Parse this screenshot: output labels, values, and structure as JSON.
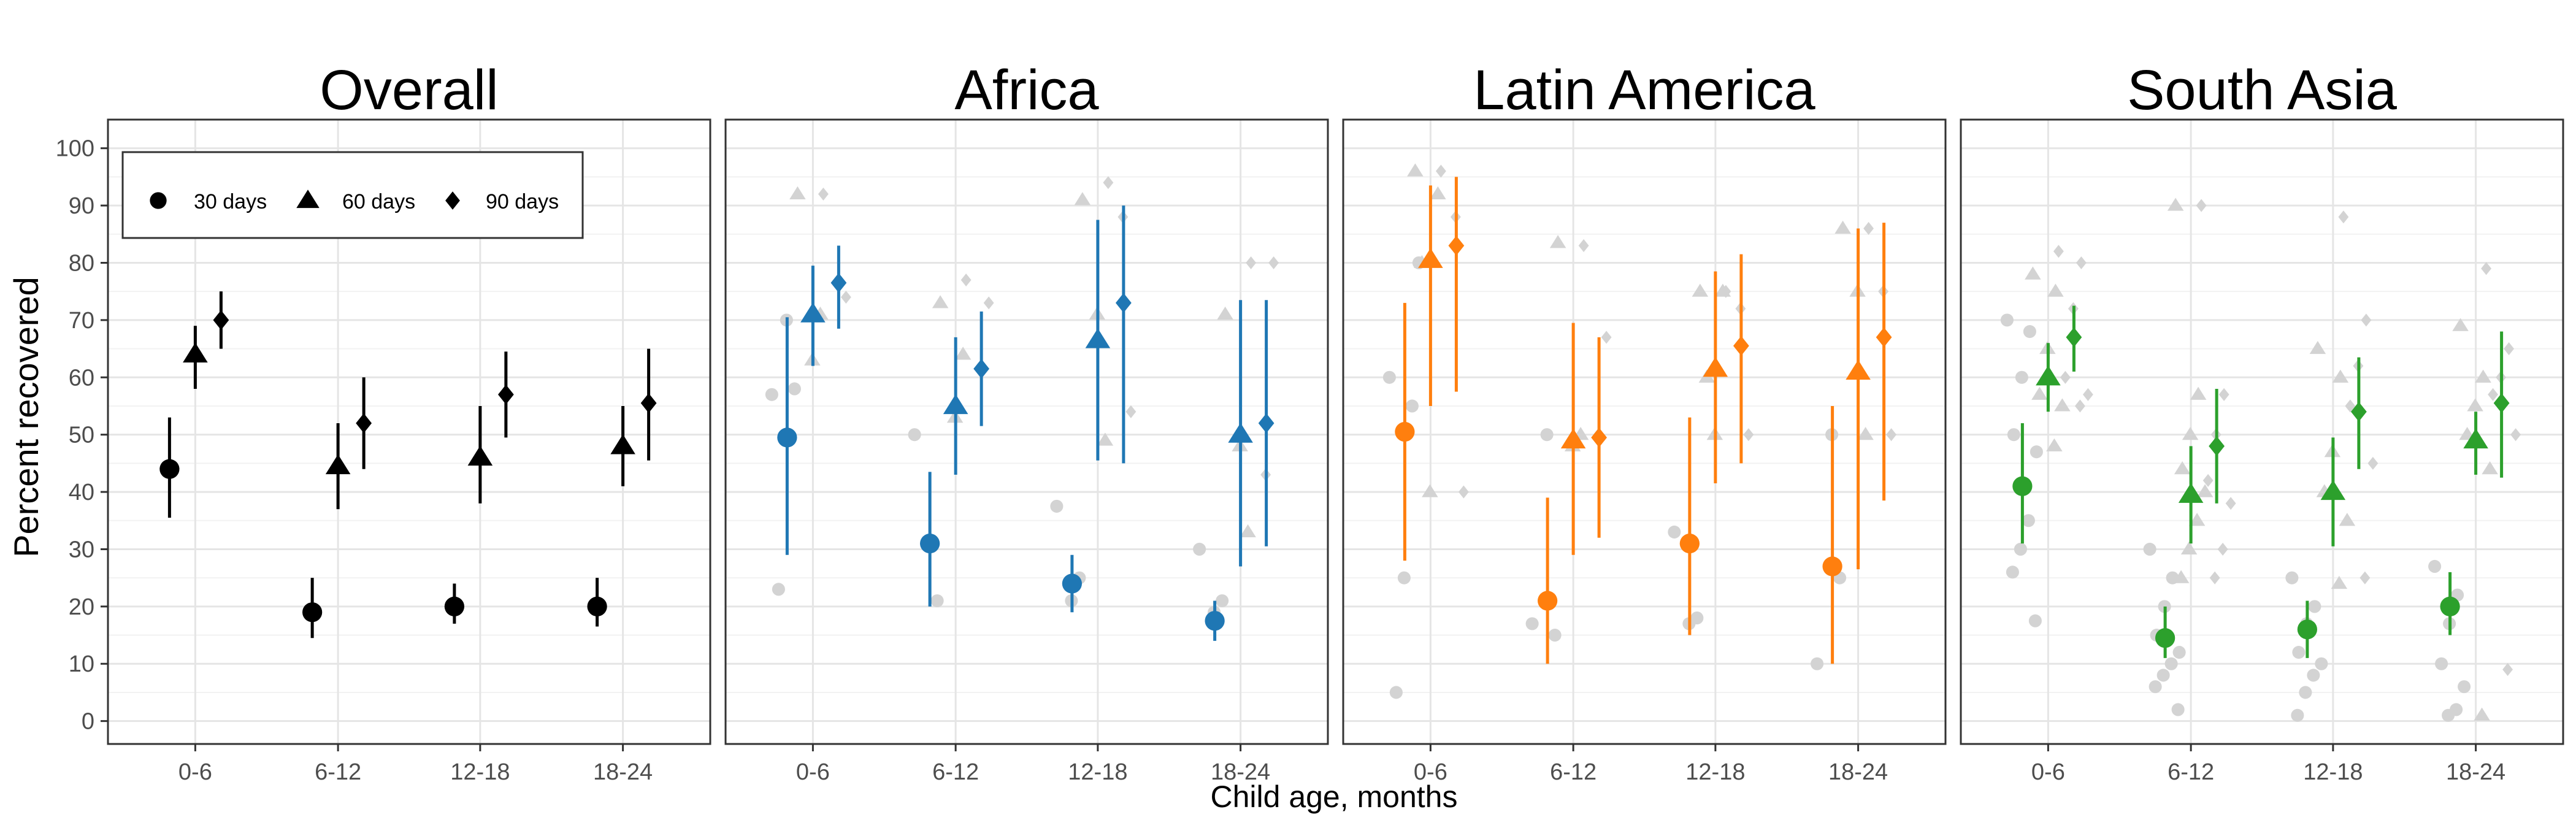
{
  "chart_data": {
    "type": "scatter",
    "ylabel": "Percent recovered",
    "xlabel": "Child age, months",
    "categories": [
      "0-6",
      "6-12",
      "12-18",
      "18-24"
    ],
    "yticks": [
      0,
      10,
      20,
      30,
      40,
      50,
      60,
      70,
      80,
      90,
      100
    ],
    "ylim": [
      -4,
      105
    ],
    "grid": true,
    "legend_position": "top-left (inside first panel)",
    "legend": [
      {
        "label": "30 days",
        "shape": "circle"
      },
      {
        "label": "60 days",
        "shape": "triangle"
      },
      {
        "label": "90 days",
        "shape": "diamond"
      }
    ],
    "colors": {
      "Overall": "#000000",
      "Africa": "#1f77b4",
      "Latin America": "#ff7f0e",
      "South Asia": "#2ca02c",
      "background_points": "#d3d3d3"
    },
    "panels": [
      {
        "title": "Overall",
        "series": [
          {
            "name": "30 days",
            "points": [
              {
                "category": "0-6",
                "y": 44,
                "lo": 35.5,
                "hi": 53
              },
              {
                "category": "6-12",
                "y": 19,
                "lo": 14.5,
                "hi": 25
              },
              {
                "category": "12-18",
                "y": 20,
                "lo": 17,
                "hi": 24
              },
              {
                "category": "18-24",
                "y": 20,
                "lo": 16.5,
                "hi": 25
              }
            ]
          },
          {
            "name": "60 days",
            "points": [
              {
                "category": "0-6",
                "y": 64,
                "lo": 58,
                "hi": 69
              },
              {
                "category": "6-12",
                "y": 44.5,
                "lo": 37,
                "hi": 52
              },
              {
                "category": "12-18",
                "y": 46,
                "lo": 38,
                "hi": 55
              },
              {
                "category": "18-24",
                "y": 48,
                "lo": 41,
                "hi": 55
              }
            ]
          },
          {
            "name": "90 days",
            "points": [
              {
                "category": "0-6",
                "y": 70,
                "lo": 65,
                "hi": 75
              },
              {
                "category": "6-12",
                "y": 52,
                "lo": 44,
                "hi": 60
              },
              {
                "category": "12-18",
                "y": 57,
                "lo": 49.5,
                "hi": 64.5
              },
              {
                "category": "18-24",
                "y": 55.5,
                "lo": 45.5,
                "hi": 65
              }
            ]
          }
        ],
        "background": []
      },
      {
        "title": "Africa",
        "series": [
          {
            "name": "30 days",
            "points": [
              {
                "category": "0-6",
                "y": 49.5,
                "lo": 29,
                "hi": 70.5
              },
              {
                "category": "6-12",
                "y": 31,
                "lo": 20,
                "hi": 43.5
              },
              {
                "category": "12-18",
                "y": 24,
                "lo": 19,
                "hi": 29
              },
              {
                "category": "18-24",
                "y": 17.5,
                "lo": 14,
                "hi": 21
              }
            ]
          },
          {
            "name": "60 days",
            "points": [
              {
                "category": "0-6",
                "y": 71,
                "lo": 62,
                "hi": 79.5
              },
              {
                "category": "6-12",
                "y": 55,
                "lo": 43,
                "hi": 67
              },
              {
                "category": "12-18",
                "y": 66.5,
                "lo": 45.5,
                "hi": 87.5
              },
              {
                "category": "18-24",
                "y": 50,
                "lo": 27,
                "hi": 73.5
              }
            ]
          },
          {
            "name": "90 days",
            "points": [
              {
                "category": "0-6",
                "y": 76.5,
                "lo": 68.5,
                "hi": 83
              },
              {
                "category": "6-12",
                "y": 61.5,
                "lo": 51.5,
                "hi": 71.5
              },
              {
                "category": "12-18",
                "y": 73,
                "lo": 45,
                "hi": 90
              },
              {
                "category": "18-24",
                "y": 52,
                "lo": 30.5,
                "hi": 73.5
              }
            ]
          }
        ],
        "background": [
          {
            "category": "0-6",
            "series": "30 days",
            "ys": [
              57,
              58,
              70,
              23
            ]
          },
          {
            "category": "0-6",
            "series": "60 days",
            "ys": [
              92,
              71,
              63
            ]
          },
          {
            "category": "0-6",
            "series": "90 days",
            "ys": [
              92,
              74
            ]
          },
          {
            "category": "6-12",
            "series": "30 days",
            "ys": [
              50,
              21
            ]
          },
          {
            "category": "6-12",
            "series": "60 days",
            "ys": [
              73,
              64,
              53
            ]
          },
          {
            "category": "6-12",
            "series": "90 days",
            "ys": [
              77,
              73
            ]
          },
          {
            "category": "12-18",
            "series": "30 days",
            "ys": [
              37.5,
              25,
              21
            ]
          },
          {
            "category": "12-18",
            "series": "60 days",
            "ys": [
              91,
              49,
              71
            ]
          },
          {
            "category": "12-18",
            "series": "90 days",
            "ys": [
              94,
              54,
              88
            ]
          },
          {
            "category": "18-24",
            "series": "30 days",
            "ys": [
              30,
              21,
              19
            ]
          },
          {
            "category": "18-24",
            "series": "60 days",
            "ys": [
              71,
              33,
              48
            ]
          },
          {
            "category": "18-24",
            "series": "90 days",
            "ys": [
              80,
              80,
              43
            ]
          }
        ]
      },
      {
        "title": "Latin America",
        "series": [
          {
            "name": "30 days",
            "points": [
              {
                "category": "0-6",
                "y": 50.5,
                "lo": 28,
                "hi": 73
              },
              {
                "category": "6-12",
                "y": 21,
                "lo": 10,
                "hi": 39
              },
              {
                "category": "12-18",
                "y": 31,
                "lo": 15,
                "hi": 53
              },
              {
                "category": "18-24",
                "y": 27,
                "lo": 10,
                "hi": 55
              }
            ]
          },
          {
            "name": "60 days",
            "points": [
              {
                "category": "0-6",
                "y": 80.5,
                "lo": 55,
                "hi": 93.5
              },
              {
                "category": "6-12",
                "y": 49,
                "lo": 29,
                "hi": 69.5
              },
              {
                "category": "12-18",
                "y": 61.5,
                "lo": 41.5,
                "hi": 78.5
              },
              {
                "category": "18-24",
                "y": 61,
                "lo": 26.5,
                "hi": 86
              }
            ]
          },
          {
            "name": "90 days",
            "points": [
              {
                "category": "0-6",
                "y": 83,
                "lo": 57.5,
                "hi": 95
              },
              {
                "category": "6-12",
                "y": 49.5,
                "lo": 32,
                "hi": 67
              },
              {
                "category": "12-18",
                "y": 65.5,
                "lo": 45,
                "hi": 81.5
              },
              {
                "category": "18-24",
                "y": 67,
                "lo": 38.5,
                "hi": 87
              }
            ]
          }
        ],
        "background": [
          {
            "category": "0-6",
            "series": "30 days",
            "ys": [
              60,
              55,
              25,
              5,
              80
            ]
          },
          {
            "category": "0-6",
            "series": "60 days",
            "ys": [
              96,
              92,
              40,
              80
            ]
          },
          {
            "category": "0-6",
            "series": "90 days",
            "ys": [
              96,
              40,
              88
            ]
          },
          {
            "category": "6-12",
            "series": "30 days",
            "ys": [
              17,
              15,
              50
            ]
          },
          {
            "category": "6-12",
            "series": "60 days",
            "ys": [
              83.5,
              50,
              48
            ]
          },
          {
            "category": "6-12",
            "series": "90 days",
            "ys": [
              83,
              67,
              50
            ]
          },
          {
            "category": "12-18",
            "series": "30 days",
            "ys": [
              33,
              18,
              17
            ]
          },
          {
            "category": "12-18",
            "series": "60 days",
            "ys": [
              75,
              75,
              50,
              60
            ]
          },
          {
            "category": "12-18",
            "series": "90 days",
            "ys": [
              75,
              50,
              72
            ]
          },
          {
            "category": "18-24",
            "series": "30 days",
            "ys": [
              10,
              25,
              50
            ]
          },
          {
            "category": "18-24",
            "series": "60 days",
            "ys": [
              86,
              50,
              75
            ]
          },
          {
            "category": "18-24",
            "series": "90 days",
            "ys": [
              86,
              50,
              75
            ]
          }
        ]
      },
      {
        "title": "South Asia",
        "series": [
          {
            "name": "30 days",
            "points": [
              {
                "category": "0-6",
                "y": 41,
                "lo": 31,
                "hi": 52
              },
              {
                "category": "6-12",
                "y": 14.5,
                "lo": 11,
                "hi": 20
              },
              {
                "category": "12-18",
                "y": 16,
                "lo": 11,
                "hi": 21
              },
              {
                "category": "18-24",
                "y": 20,
                "lo": 15,
                "hi": 26
              }
            ]
          },
          {
            "name": "60 days",
            "points": [
              {
                "category": "0-6",
                "y": 60,
                "lo": 54,
                "hi": 66
              },
              {
                "category": "6-12",
                "y": 39.5,
                "lo": 31,
                "hi": 48
              },
              {
                "category": "12-18",
                "y": 40,
                "lo": 30.5,
                "hi": 49.5
              },
              {
                "category": "18-24",
                "y": 49,
                "lo": 43,
                "hi": 54
              }
            ]
          },
          {
            "name": "90 days",
            "points": [
              {
                "category": "0-6",
                "y": 67,
                "lo": 61,
                "hi": 72.5
              },
              {
                "category": "6-12",
                "y": 48,
                "lo": 38,
                "hi": 58
              },
              {
                "category": "12-18",
                "y": 54,
                "lo": 44,
                "hi": 63.5
              },
              {
                "category": "18-24",
                "y": 55.5,
                "lo": 42.5,
                "hi": 68
              }
            ]
          }
        ],
        "background": [
          {
            "category": "0-6",
            "series": "30 days",
            "ys": [
              70,
              68,
              60,
              50,
              47,
              35,
              30,
              26,
              17.5
            ]
          },
          {
            "category": "0-6",
            "series": "60 days",
            "ys": [
              78,
              75,
              65,
              57,
              55,
              48
            ]
          },
          {
            "category": "0-6",
            "series": "90 days",
            "ys": [
              82,
              80,
              72,
              60,
              57,
              55
            ]
          },
          {
            "category": "6-12",
            "series": "30 days",
            "ys": [
              30,
              25,
              20,
              15,
              12,
              10,
              8,
              6,
              2
            ]
          },
          {
            "category": "6-12",
            "series": "60 days",
            "ys": [
              90,
              57,
              50,
              44,
              40,
              35,
              30,
              25
            ]
          },
          {
            "category": "6-12",
            "series": "90 days",
            "ys": [
              90,
              57,
              50,
              42,
              38,
              30,
              25
            ]
          },
          {
            "category": "12-18",
            "series": "30 days",
            "ys": [
              25,
              20,
              17,
              12,
              10,
              8,
              5,
              1
            ]
          },
          {
            "category": "12-18",
            "series": "60 days",
            "ys": [
              65,
              60,
              47,
              40,
              35,
              24
            ]
          },
          {
            "category": "12-18",
            "series": "90 days",
            "ys": [
              88,
              70,
              62,
              55,
              45,
              25
            ]
          },
          {
            "category": "18-24",
            "series": "30 days",
            "ys": [
              27,
              22,
              17,
              10,
              6,
              2,
              1
            ]
          },
          {
            "category": "18-24",
            "series": "60 days",
            "ys": [
              69,
              60,
              55,
              50,
              44,
              1
            ]
          },
          {
            "category": "18-24",
            "series": "90 days",
            "ys": [
              79,
              65,
              60,
              57,
              50,
              9
            ]
          }
        ]
      }
    ]
  }
}
